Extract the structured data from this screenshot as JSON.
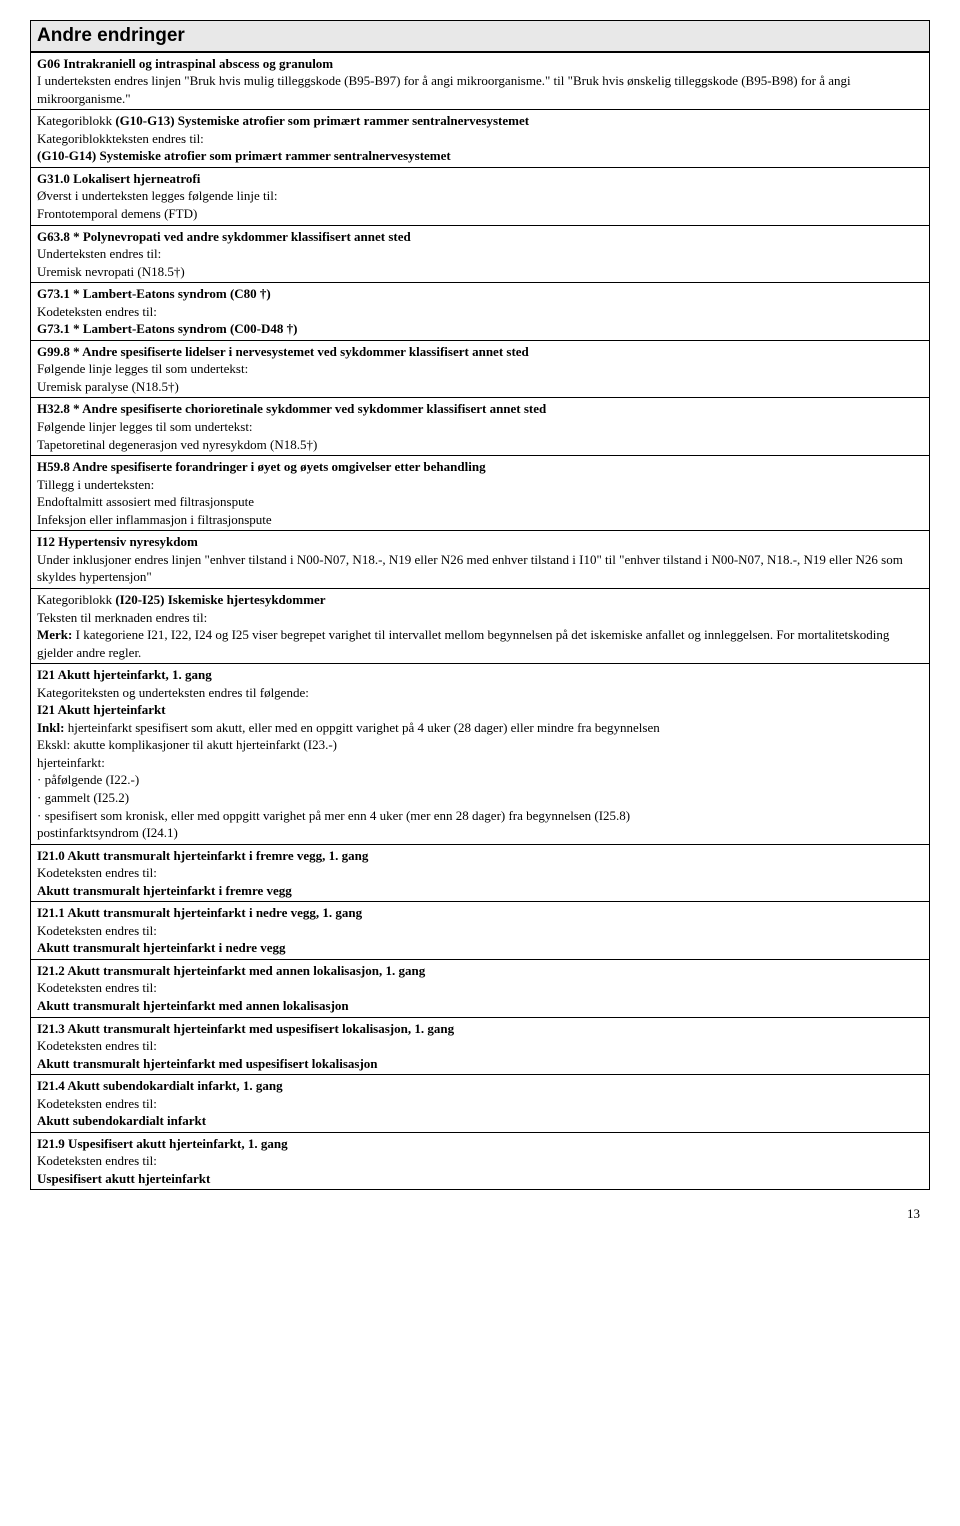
{
  "header": "Andre endringer",
  "rows": [
    {
      "lines": [
        {
          "b": true,
          "t": "G06 Intrakraniell og intraspinal abscess og granulom"
        },
        {
          "b": false,
          "t": "I underteksten endres linjen \"Bruk hvis mulig tilleggskode (B95-B97) for å angi mikroorganisme.\" til \"Bruk hvis ønskelig tilleggskode (B95-B98) for å angi mikroorganisme.\""
        }
      ]
    },
    {
      "lines": [
        {
          "b": false,
          "pre": "Kategoriblokk ",
          "bmid": "(G10-G13) Systemiske atrofier som primært rammer sentralnervesystemet"
        },
        {
          "b": false,
          "t": "Kategoriblokkteksten endres til:"
        },
        {
          "b": true,
          "t": "(G10-G14) Systemiske atrofier som primært rammer sentralnervesystemet"
        }
      ]
    },
    {
      "lines": [
        {
          "b": true,
          "t": "G31.0 Lokalisert hjerneatrofi"
        },
        {
          "b": false,
          "t": "Øverst i underteksten legges følgende linje til:"
        },
        {
          "b": false,
          "t": "Frontotemporal demens (FTD)"
        }
      ]
    },
    {
      "lines": [
        {
          "b": true,
          "t": "G63.8 * Polynevropati ved andre sykdommer klassifisert annet sted"
        },
        {
          "b": false,
          "t": "Underteksten endres til:"
        },
        {
          "b": false,
          "t": "Uremisk nevropati (N18.5†)"
        }
      ]
    },
    {
      "lines": [
        {
          "b": true,
          "t": "G73.1 * Lambert-Eatons syndrom (C80 †)"
        },
        {
          "b": false,
          "t": "Kodeteksten endres til:"
        },
        {
          "b": true,
          "t": "G73.1 * Lambert-Eatons syndrom (C00-D48 †)"
        }
      ]
    },
    {
      "lines": [
        {
          "b": true,
          "t": "G99.8 * Andre spesifiserte lidelser i nervesystemet ved sykdommer klassifisert annet sted"
        },
        {
          "b": false,
          "t": "Følgende linje legges til som undertekst:"
        },
        {
          "b": false,
          "t": "Uremisk paralyse (N18.5†)"
        }
      ]
    },
    {
      "lines": [
        {
          "b": true,
          "t": "H32.8 * Andre spesifiserte chorioretinale sykdommer ved sykdommer klassifisert annet sted"
        },
        {
          "b": false,
          "t": "Følgende linjer legges til som undertekst:"
        },
        {
          "b": false,
          "t": " Tapetoretinal degenerasjon ved nyresykdom (N18.5†)"
        }
      ]
    },
    {
      "lines": [
        {
          "b": true,
          "t": "H59.8 Andre spesifiserte forandringer i øyet og øyets omgivelser etter behandling"
        },
        {
          "b": false,
          "t": "Tillegg i underteksten:"
        },
        {
          "b": false,
          "t": "Endoftalmitt assosiert med filtrasjonspute"
        },
        {
          "b": false,
          "t": "Infeksjon eller inflammasjon i filtrasjonspute"
        }
      ]
    },
    {
      "lines": [
        {
          "b": true,
          "t": "I12 Hypertensiv nyresykdom"
        },
        {
          "b": false,
          "t": "Under inklusjoner endres linjen \"enhver tilstand i N00-N07, N18.-, N19 eller N26 med enhver tilstand i I10\" til \"enhver tilstand i N00-N07, N18.-, N19 eller N26 som skyldes hypertensjon\""
        }
      ]
    },
    {
      "lines": [
        {
          "b": false,
          "pre": "Kategoriblokk ",
          "bmid": "(I20-I25) Iskemiske hjertesykdommer"
        },
        {
          "b": false,
          "t": "Teksten til merknaden endres til:"
        },
        {
          "b": false,
          "pre2": "Merk:",
          "post": " I kategoriene I21, I22, I24 og I25 viser begrepet varighet til intervallet mellom begynnelsen på det iskemiske anfallet og innleggelsen. For mortalitetskoding gjelder andre regler."
        }
      ]
    },
    {
      "lines": [
        {
          "b": true,
          "t": "I21 Akutt hjerteinfarkt, 1. gang"
        },
        {
          "b": false,
          "t": "Kategoriteksten og underteksten endres til følgende:"
        },
        {
          "b": true,
          "t": "I21 Akutt hjerteinfarkt"
        },
        {
          "b": false,
          "pre2": "Inkl:",
          "post": " hjerteinfarkt spesifisert som akutt, eller med en oppgitt varighet på 4 uker (28 dager) eller mindre fra begynnelsen"
        },
        {
          "b": false,
          "t": "Ekskl:  akutte komplikasjoner til akutt hjerteinfarkt (I23.-)"
        },
        {
          "b": false,
          "t": "hjerteinfarkt:"
        },
        {
          "b": false,
          "t": "· påfølgende (I22.-)"
        },
        {
          "b": false,
          "t": "· gammelt (I25.2)"
        },
        {
          "b": false,
          "t": "· spesifisert som kronisk, eller med oppgitt varighet på mer enn 4 uker (mer enn 28 dager) fra begynnelsen (I25.8)"
        },
        {
          "b": false,
          "t": "postinfarktsyndrom (I24.1)"
        }
      ]
    },
    {
      "lines": [
        {
          "b": true,
          "t": "I21.0 Akutt transmuralt hjerteinfarkt i fremre vegg, 1. gang"
        },
        {
          "b": false,
          "t": "Kodeteksten endres til:"
        },
        {
          "b": true,
          "t": "Akutt transmuralt hjerteinfarkt i fremre vegg"
        }
      ]
    },
    {
      "lines": [
        {
          "b": true,
          "t": "I21.1 Akutt transmuralt hjerteinfarkt i nedre vegg, 1. gang"
        },
        {
          "b": false,
          "t": "Kodeteksten endres til:"
        },
        {
          "b": true,
          "t": "Akutt transmuralt hjerteinfarkt i nedre vegg"
        }
      ]
    },
    {
      "lines": [
        {
          "b": true,
          "t": "I21.2 Akutt transmuralt hjerteinfarkt med annen lokalisasjon, 1. gang"
        },
        {
          "b": false,
          "t": "Kodeteksten endres til:"
        },
        {
          "b": true,
          "t": "Akutt transmuralt hjerteinfarkt med annen lokalisasjon"
        }
      ]
    },
    {
      "lines": [
        {
          "b": true,
          "t": "I21.3 Akutt transmuralt hjerteinfarkt med uspesifisert lokalisasjon, 1. gang"
        },
        {
          "b": false,
          "t": "Kodeteksten endres til:"
        },
        {
          "b": true,
          "t": "Akutt transmuralt hjerteinfarkt med uspesifisert lokalisasjon"
        }
      ]
    },
    {
      "lines": [
        {
          "b": true,
          "t": "I21.4 Akutt subendokardialt infarkt, 1. gang"
        },
        {
          "b": false,
          "t": "Kodeteksten endres til:"
        },
        {
          "b": true,
          "t": "Akutt subendokardialt infarkt"
        }
      ]
    },
    {
      "lines": [
        {
          "b": true,
          "t": "I21.9 Uspesifisert akutt hjerteinfarkt, 1. gang"
        },
        {
          "b": false,
          "t": "Kodeteksten endres til:"
        },
        {
          "b": true,
          "t": "Uspesifisert akutt hjerteinfarkt"
        }
      ]
    }
  ],
  "pageNumber": "13"
}
